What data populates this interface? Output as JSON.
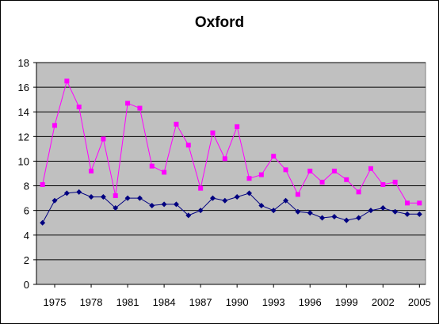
{
  "chart_data": {
    "type": "line",
    "title": "Oxford",
    "xlabel": "",
    "ylabel": "",
    "xlim": [
      1975,
      2005
    ],
    "ylim": [
      0,
      18
    ],
    "x_ticks": [
      1975,
      1978,
      1981,
      1984,
      1987,
      1990,
      1993,
      1996,
      1999,
      2002,
      2005
    ],
    "y_ticks": [
      0,
      2,
      4,
      6,
      8,
      10,
      12,
      14,
      16,
      18
    ],
    "grid": "horizontal",
    "legend": "none",
    "plot_background": "#c0c0c0",
    "x": [
      1974,
      1975,
      1976,
      1977,
      1978,
      1979,
      1980,
      1981,
      1982,
      1983,
      1984,
      1985,
      1986,
      1987,
      1988,
      1989,
      1990,
      1991,
      1992,
      1993,
      1994,
      1995,
      1996,
      1997,
      1998,
      1999,
      2000,
      2001,
      2002,
      2003,
      2004,
      2005
    ],
    "series": [
      {
        "color": "#ff00ff",
        "marker": "square",
        "values": [
          8.1,
          12.9,
          16.5,
          14.4,
          9.2,
          11.8,
          7.2,
          14.7,
          14.3,
          9.6,
          9.1,
          13.0,
          11.3,
          7.8,
          12.3,
          10.2,
          12.8,
          8.6,
          8.9,
          10.4,
          9.3,
          7.3,
          9.2,
          8.3,
          9.2,
          8.5,
          7.5,
          9.4,
          8.1,
          8.3,
          6.6,
          6.6
        ]
      },
      {
        "color": "#000080",
        "marker": "diamond",
        "values": [
          5.0,
          6.8,
          7.4,
          7.5,
          7.1,
          7.1,
          6.2,
          7.0,
          7.0,
          6.4,
          6.5,
          6.5,
          5.6,
          6.0,
          7.0,
          6.8,
          7.1,
          7.4,
          6.4,
          6.0,
          6.8,
          5.9,
          5.8,
          5.4,
          5.5,
          5.2,
          5.4,
          6.0,
          6.2,
          5.9,
          5.7,
          5.7
        ]
      }
    ]
  }
}
